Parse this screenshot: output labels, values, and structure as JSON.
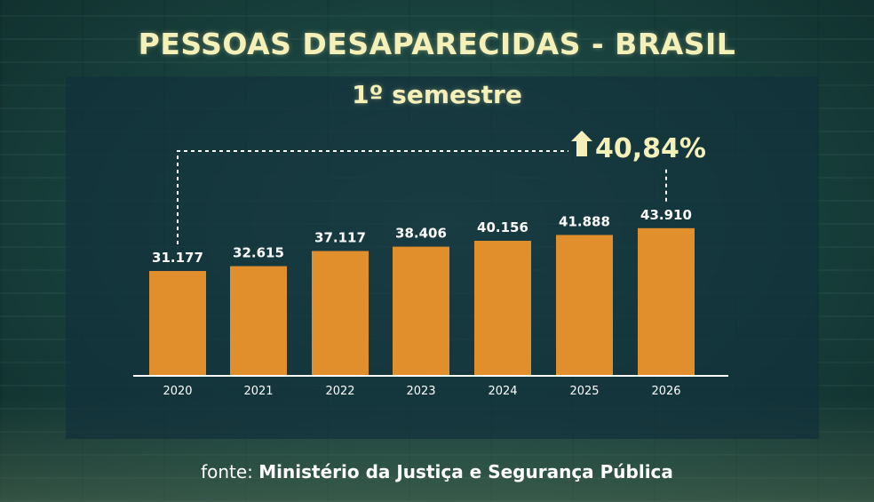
{
  "title": "PESSOAS DESAPARECIDAS - BRASIL",
  "subtitle": "1º semestre",
  "source": {
    "prefix": "fonte:",
    "name": "Ministério da Justiça e Segurança Pública"
  },
  "colors": {
    "bar": "#e08f2c",
    "text": "#ffffff",
    "highlight": "#f5f0b8"
  },
  "chart_data": {
    "type": "bar",
    "title": "PESSOAS DESAPARECIDAS - BRASIL",
    "subtitle": "1º semestre",
    "categories": [
      "2020",
      "2021",
      "2022",
      "2023",
      "2024",
      "2025",
      "2026"
    ],
    "values": [
      31177,
      32615,
      37117,
      38406,
      40156,
      41888,
      43910
    ],
    "value_labels": [
      "31.177",
      "32.615",
      "37.117",
      "38.406",
      "40.156",
      "41.888",
      "43.910"
    ],
    "xlabel": "",
    "ylabel": "",
    "annotation": {
      "text": "40,84%",
      "direction": "up",
      "from_category": "2020",
      "to_category": "2026"
    },
    "grid": false,
    "legend": "none"
  }
}
